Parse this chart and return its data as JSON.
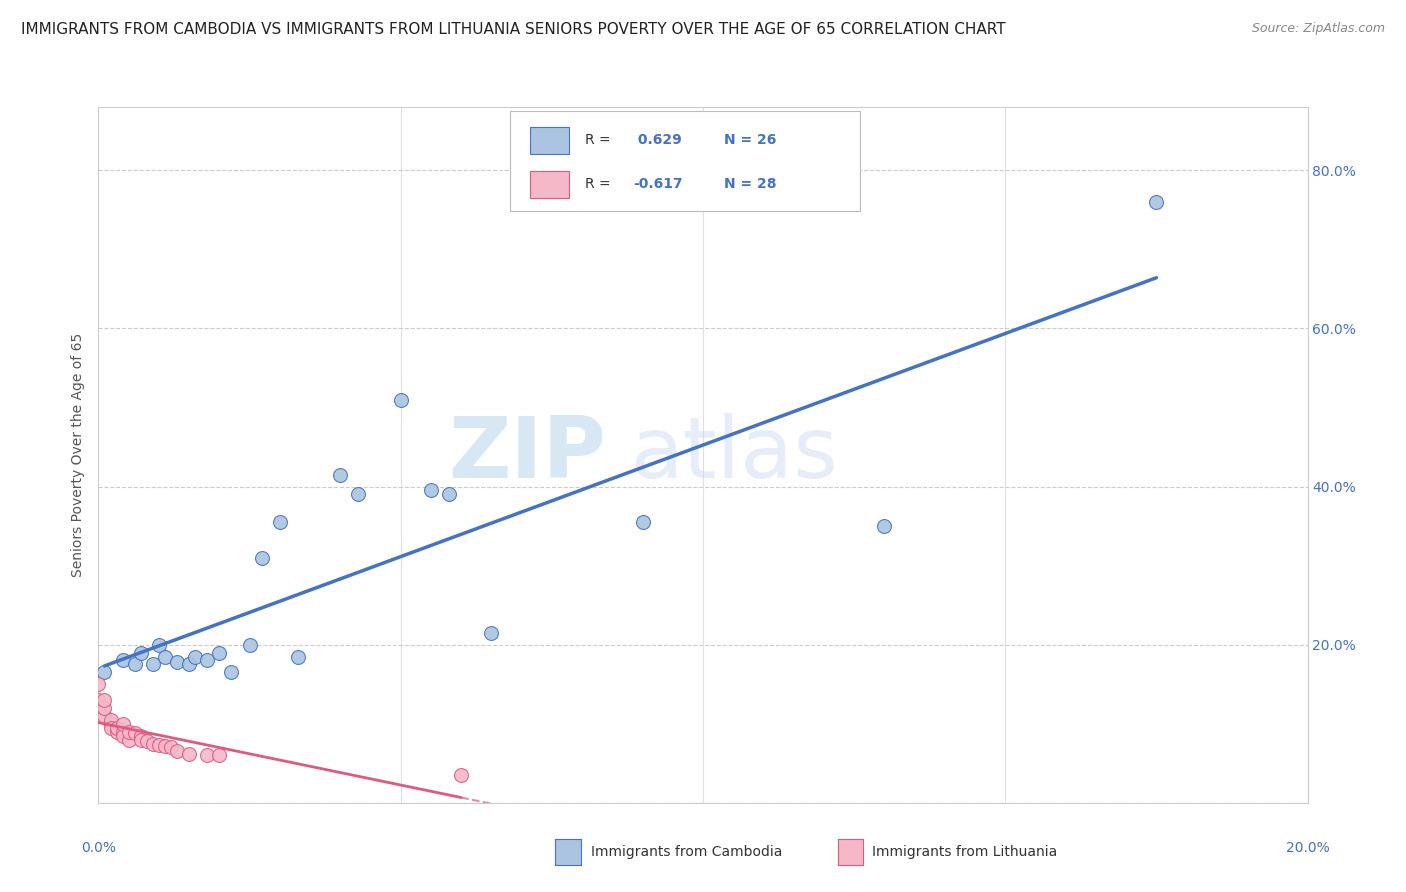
{
  "title": "IMMIGRANTS FROM CAMBODIA VS IMMIGRANTS FROM LITHUANIA SENIORS POVERTY OVER THE AGE OF 65 CORRELATION CHART",
  "source": "Source: ZipAtlas.com",
  "ylabel": "Seniors Poverty Over the Age of 65",
  "r_cambodia": 0.629,
  "n_cambodia": 26,
  "r_lithuania": -0.617,
  "n_lithuania": 28,
  "xlim": [
    0.0,
    0.2
  ],
  "ylim": [
    0.0,
    0.88
  ],
  "yticks": [
    0.0,
    0.2,
    0.4,
    0.6,
    0.8
  ],
  "ytick_labels": [
    "",
    "20.0%",
    "40.0%",
    "60.0%",
    "80.0%"
  ],
  "color_cambodia": "#aac4e2",
  "color_cambodia_line": "#4472c4",
  "color_lithuania": "#f4b8c8",
  "color_lithuania_line": "#e05a80",
  "watermark_zip": "ZIP",
  "watermark_atlas": "atlas",
  "cambodia_points": [
    [
      0.001,
      0.165
    ],
    [
      0.004,
      0.18
    ],
    [
      0.006,
      0.175
    ],
    [
      0.007,
      0.19
    ],
    [
      0.009,
      0.175
    ],
    [
      0.01,
      0.2
    ],
    [
      0.011,
      0.185
    ],
    [
      0.013,
      0.178
    ],
    [
      0.015,
      0.175
    ],
    [
      0.016,
      0.185
    ],
    [
      0.018,
      0.18
    ],
    [
      0.02,
      0.19
    ],
    [
      0.022,
      0.165
    ],
    [
      0.025,
      0.2
    ],
    [
      0.027,
      0.31
    ],
    [
      0.03,
      0.355
    ],
    [
      0.033,
      0.185
    ],
    [
      0.04,
      0.415
    ],
    [
      0.043,
      0.39
    ],
    [
      0.05,
      0.51
    ],
    [
      0.055,
      0.395
    ],
    [
      0.058,
      0.39
    ],
    [
      0.065,
      0.215
    ],
    [
      0.09,
      0.355
    ],
    [
      0.13,
      0.35
    ],
    [
      0.175,
      0.76
    ]
  ],
  "lithuania_points": [
    [
      0.0,
      0.13
    ],
    [
      0.0,
      0.15
    ],
    [
      0.001,
      0.11
    ],
    [
      0.001,
      0.12
    ],
    [
      0.001,
      0.13
    ],
    [
      0.002,
      0.1
    ],
    [
      0.002,
      0.105
    ],
    [
      0.002,
      0.095
    ],
    [
      0.003,
      0.09
    ],
    [
      0.003,
      0.095
    ],
    [
      0.004,
      0.09
    ],
    [
      0.004,
      0.085
    ],
    [
      0.004,
      0.1
    ],
    [
      0.005,
      0.08
    ],
    [
      0.005,
      0.09
    ],
    [
      0.006,
      0.088
    ],
    [
      0.007,
      0.085
    ],
    [
      0.007,
      0.08
    ],
    [
      0.008,
      0.078
    ],
    [
      0.009,
      0.075
    ],
    [
      0.01,
      0.073
    ],
    [
      0.011,
      0.072
    ],
    [
      0.012,
      0.07
    ],
    [
      0.013,
      0.065
    ],
    [
      0.015,
      0.062
    ],
    [
      0.018,
      0.06
    ],
    [
      0.02,
      0.06
    ],
    [
      0.06,
      0.035
    ]
  ],
  "legend_label_cambodia": "Immigrants from Cambodia",
  "legend_label_lithuania": "Immigrants from Lithuania",
  "background_color": "#ffffff",
  "grid_color": "#cccccc",
  "title_fontsize": 11,
  "axis_label_fontsize": 10,
  "tick_fontsize": 10,
  "marker_size": 100
}
